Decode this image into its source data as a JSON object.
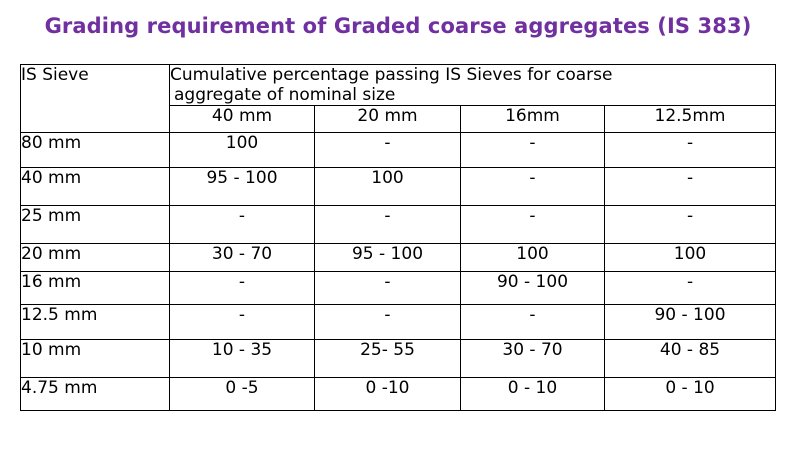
{
  "title": "Grading requirement of Graded coarse aggregates (IS 383)",
  "table": {
    "sieve_header": "IS Sieve",
    "group_header_line1": "Cumulative percentage passing IS Sieves for coarse",
    "group_header_line2": "aggregate of nominal size",
    "size_headers": [
      "40 mm",
      "20 mm",
      "16mm",
      "12.5mm"
    ],
    "rows": [
      {
        "sieve": "80 mm",
        "values": [
          "100",
          "-",
          "-",
          "-"
        ]
      },
      {
        "sieve": "40 mm",
        "values": [
          "95 - 100",
          "100",
          "-",
          "-"
        ]
      },
      {
        "sieve": "25 mm",
        "values": [
          "-",
          "-",
          "-",
          "-"
        ]
      },
      {
        "sieve": "20 mm",
        "values": [
          "30 - 70",
          "95 - 100",
          "100",
          "100"
        ]
      },
      {
        "sieve": "16 mm",
        "values": [
          "-",
          "-",
          "90 - 100",
          "-"
        ]
      },
      {
        "sieve": "12.5 mm",
        "values": [
          "-",
          "-",
          "-",
          "90 - 100"
        ]
      },
      {
        "sieve": "10 mm",
        "values": [
          "10 - 35",
          "25- 55",
          "30 - 70",
          "40 - 85"
        ]
      },
      {
        "sieve": "4.75 mm",
        "values": [
          "0 -5",
          "0 -10",
          "0 - 10",
          "0 - 10"
        ]
      }
    ]
  },
  "colors": {
    "title": "#7030a0",
    "text": "#000000",
    "border": "#000000",
    "background": "#ffffff"
  }
}
